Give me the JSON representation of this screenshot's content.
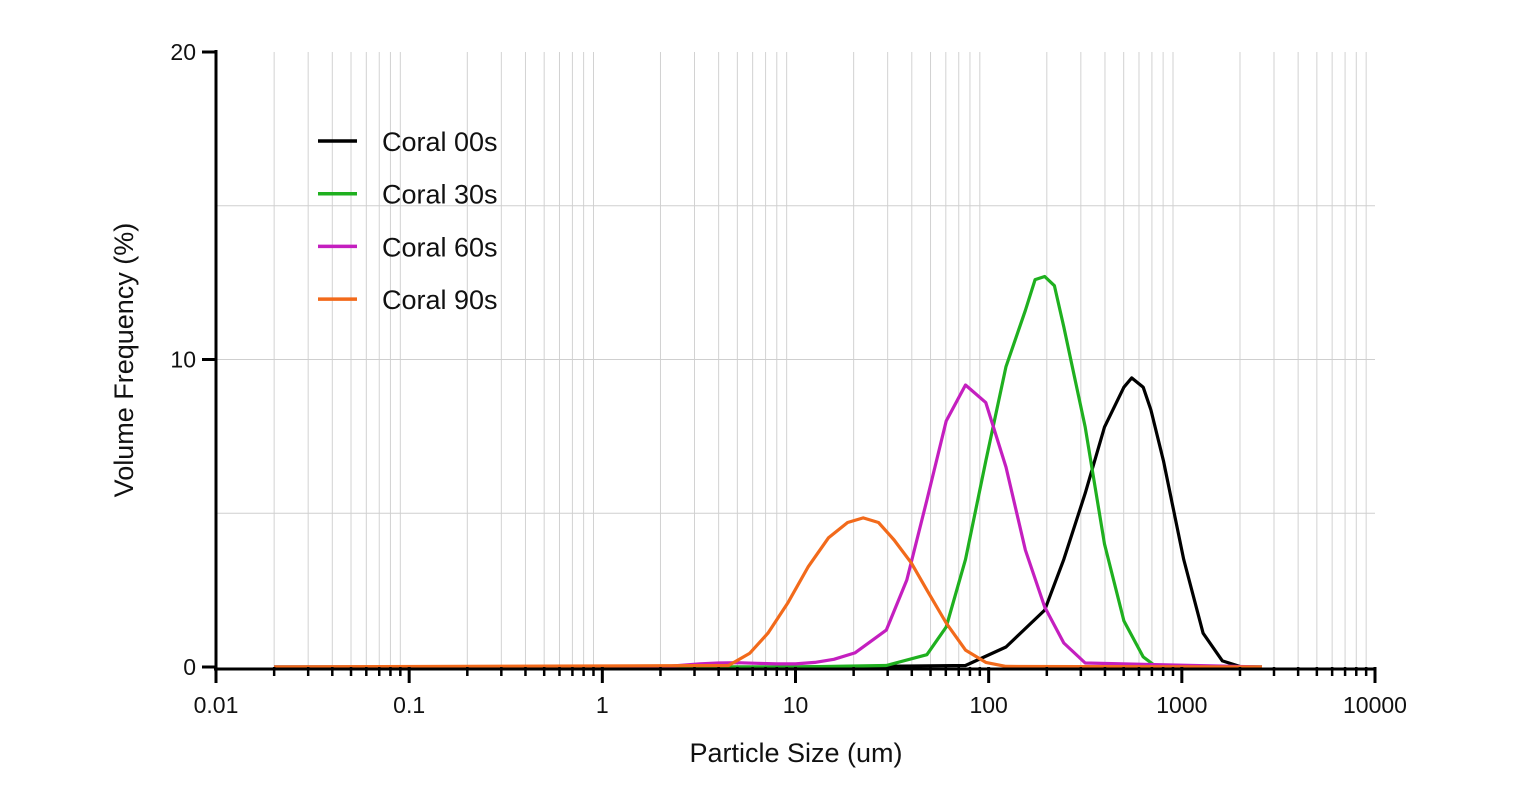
{
  "chart_data": {
    "type": "line",
    "title": "",
    "xlabel": "Particle Size (um)",
    "ylabel": "Volume Frequency (%)",
    "xscale": "log",
    "xlim": [
      0.01,
      10000
    ],
    "ylim": [
      0,
      20
    ],
    "x_ticks": [
      "0.01",
      "0.1",
      "1",
      "10",
      "100",
      "1000",
      "10000"
    ],
    "y_ticks": [
      "0",
      "10",
      "20"
    ],
    "grid": true,
    "legend_position": "top-left",
    "series": [
      {
        "name": "Coral 00s",
        "color": "#000000",
        "x": [
          0.02,
          10,
          75.9,
          123,
          195,
          245,
          316,
          398,
          501,
          550,
          631,
          692,
          804,
          1023,
          1288,
          1622,
          2042,
          2600
        ],
        "y": [
          0,
          0,
          0.05,
          0.65,
          1.85,
          3.5,
          5.65,
          7.8,
          9.1,
          9.4,
          9.1,
          8.36,
          6.7,
          3.5,
          1.1,
          0.2,
          0,
          0
        ]
      },
      {
        "name": "Coral 30s",
        "color": "#1fb01f",
        "x": [
          0.02,
          10,
          29.5,
          47.9,
          60.3,
          75.9,
          96.6,
          123,
          155,
          174,
          195,
          219,
          245,
          316,
          398,
          501,
          631,
          724,
          2600
        ],
        "y": [
          0,
          0,
          0.05,
          0.4,
          1.3,
          3.5,
          6.7,
          9.77,
          11.6,
          12.6,
          12.7,
          12.4,
          11.06,
          7.8,
          4.0,
          1.5,
          0.33,
          0.05,
          0
        ]
      },
      {
        "name": "Coral 60s",
        "color": "#c41fbf",
        "x": [
          0.02,
          2,
          2.5,
          3.2,
          4,
          5,
          6.3,
          8,
          10,
          12.6,
          15.8,
          20.3,
          29.5,
          37.7,
          47.9,
          60.3,
          75.9,
          96.6,
          123,
          155,
          195,
          245,
          316,
          2600
        ],
        "y": [
          0,
          0,
          0.05,
          0.1,
          0.13,
          0.14,
          0.12,
          0.1,
          0.1,
          0.15,
          0.25,
          0.46,
          1.2,
          2.83,
          5.43,
          8.0,
          9.17,
          8.6,
          6.5,
          3.8,
          1.95,
          0.78,
          0.13,
          0
        ]
      },
      {
        "name": "Coral 90s",
        "color": "#f26a1b",
        "x": [
          0.02,
          4.5,
          5.8,
          7.2,
          9.1,
          11.6,
          14.8,
          18.6,
          22.4,
          26.9,
          32.4,
          39.8,
          47.9,
          60.3,
          75.9,
          96.6,
          123,
          2600
        ],
        "y": [
          0,
          0.05,
          0.45,
          1.1,
          2.07,
          3.25,
          4.2,
          4.7,
          4.85,
          4.7,
          4.13,
          3.38,
          2.5,
          1.43,
          0.55,
          0.15,
          0.02,
          0
        ]
      }
    ]
  }
}
